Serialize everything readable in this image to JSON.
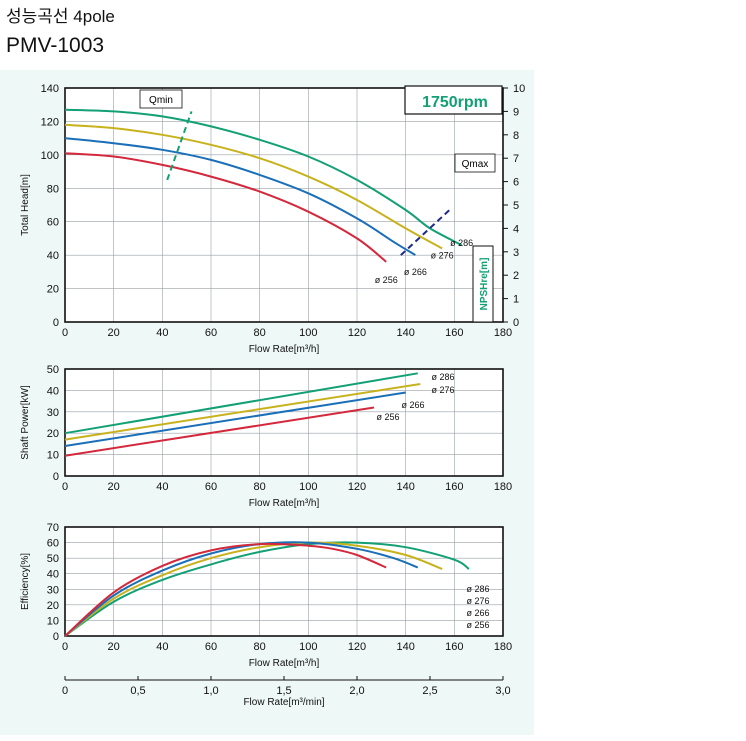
{
  "title": "성능곡선 4pole",
  "model": "PMV-1003",
  "rpm_label": "1750rpm",
  "colors": {
    "d286": "#12a074",
    "d276": "#c8b21c",
    "d266": "#1a6fb8",
    "d256": "#d4283c",
    "npsh": "#12a074",
    "guide": "#1d2a8a"
  },
  "chart_data": [
    {
      "type": "line",
      "name": "head",
      "xlabel": "Flow Rate[m³/h]",
      "ylabel": "Total Head[m]",
      "y2label": "NPSHre[m]",
      "xlim": [
        0,
        180
      ],
      "ylim": [
        0,
        140
      ],
      "y2lim": [
        0,
        10
      ],
      "xticks": [
        0,
        20,
        40,
        60,
        80,
        100,
        120,
        140,
        160,
        180
      ],
      "yticks": [
        0,
        20,
        40,
        60,
        80,
        100,
        120,
        140
      ],
      "y2ticks": [
        0,
        1,
        2,
        3,
        4,
        5,
        6,
        7,
        8,
        9,
        10
      ],
      "grid": true,
      "annotations": [
        "Qmin",
        "Qmax"
      ],
      "series": [
        {
          "name": "ø 286",
          "color": "d286",
          "x": [
            0,
            20,
            40,
            60,
            80,
            100,
            120,
            140,
            150,
            163
          ],
          "y": [
            127,
            126,
            123,
            117,
            109,
            99,
            85,
            67,
            56,
            46
          ]
        },
        {
          "name": "ø 276",
          "color": "d276",
          "x": [
            0,
            20,
            40,
            60,
            80,
            100,
            120,
            140,
            155
          ],
          "y": [
            118,
            116,
            112,
            106,
            98,
            87,
            73,
            56,
            44
          ]
        },
        {
          "name": "ø 266",
          "color": "d266",
          "x": [
            0,
            20,
            40,
            60,
            80,
            100,
            120,
            135,
            144
          ],
          "y": [
            110,
            107,
            103,
            97,
            88,
            77,
            62,
            48,
            40
          ]
        },
        {
          "name": "ø 256",
          "color": "d256",
          "x": [
            0,
            20,
            40,
            60,
            80,
            100,
            120,
            132
          ],
          "y": [
            101,
            99,
            94,
            87,
            78,
            66,
            50,
            36
          ]
        }
      ],
      "qmin_line": {
        "x": [
          42,
          52
        ],
        "y": [
          85,
          126
        ]
      },
      "qmax_line": {
        "x": [
          138,
          158
        ],
        "y": [
          40,
          67
        ]
      }
    },
    {
      "type": "line",
      "name": "power",
      "xlabel": "Flow Rate[m³/h]",
      "ylabel": "Shaft Power[kW]",
      "xlim": [
        0,
        180
      ],
      "ylim": [
        0,
        50
      ],
      "xticks": [
        0,
        20,
        40,
        60,
        80,
        100,
        120,
        140,
        160,
        180
      ],
      "yticks": [
        0,
        10,
        20,
        30,
        40,
        50
      ],
      "grid": true,
      "series": [
        {
          "name": "ø 286",
          "color": "d286",
          "x": [
            0,
            145
          ],
          "y": [
            20,
            48
          ]
        },
        {
          "name": "ø 276",
          "color": "d276",
          "x": [
            0,
            146
          ],
          "y": [
            17,
            43
          ]
        },
        {
          "name": "ø 266",
          "color": "d266",
          "x": [
            0,
            140
          ],
          "y": [
            14,
            39
          ]
        },
        {
          "name": "ø 256",
          "color": "d256",
          "x": [
            0,
            127
          ],
          "y": [
            9.5,
            32
          ]
        }
      ]
    },
    {
      "type": "line",
      "name": "efficiency",
      "xlabel": "Flow Rate[m³/h]",
      "ylabel": "Efficiency[%]",
      "xlim": [
        0,
        180
      ],
      "ylim": [
        0,
        70
      ],
      "xticks": [
        0,
        20,
        40,
        60,
        80,
        100,
        120,
        140,
        160,
        180
      ],
      "yticks": [
        0,
        10,
        20,
        30,
        40,
        50,
        60,
        70
      ],
      "grid": true,
      "legend": [
        "ø 286",
        "ø 276",
        "ø 266",
        "ø 256"
      ],
      "series": [
        {
          "name": "ø 286",
          "color": "d286",
          "x": [
            0,
            20,
            40,
            60,
            80,
            100,
            120,
            140,
            160,
            166
          ],
          "y": [
            0,
            22,
            36,
            46,
            54,
            59,
            60,
            57,
            49,
            43
          ]
        },
        {
          "name": "ø 276",
          "color": "d276",
          "x": [
            0,
            20,
            40,
            60,
            80,
            100,
            120,
            140,
            155
          ],
          "y": [
            0,
            24,
            39,
            50,
            57,
            60,
            58,
            52,
            43
          ]
        },
        {
          "name": "ø 266",
          "color": "d266",
          "x": [
            0,
            20,
            40,
            60,
            80,
            100,
            120,
            135,
            145
          ],
          "y": [
            0,
            26,
            42,
            53,
            59,
            60,
            56,
            50,
            44
          ]
        },
        {
          "name": "ø 256",
          "color": "d256",
          "x": [
            0,
            20,
            40,
            60,
            80,
            100,
            110,
            120,
            132
          ],
          "y": [
            0,
            28,
            45,
            55,
            59,
            58,
            56,
            52,
            44
          ]
        }
      ]
    },
    {
      "type": "axis",
      "name": "flow_min",
      "xlabel": "Flow Rate[m³/min]",
      "xlim": [
        0,
        3.0
      ],
      "xticks": [
        "0",
        "0,5",
        "1,0",
        "1,5",
        "2,0",
        "2,5",
        "3,0"
      ]
    }
  ]
}
